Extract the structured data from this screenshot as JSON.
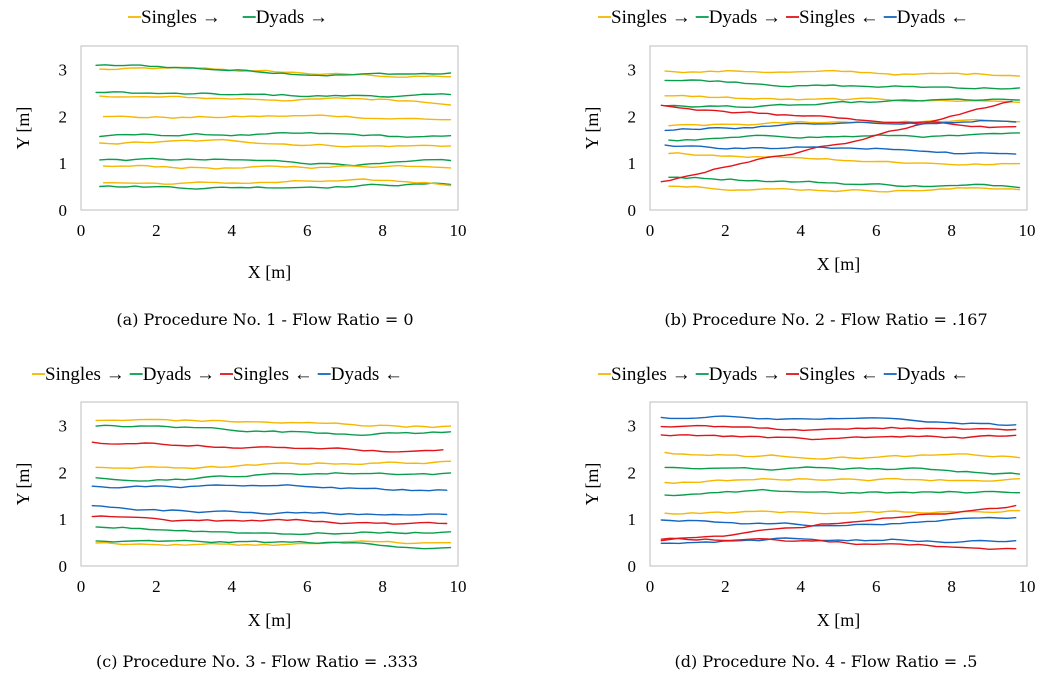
{
  "figure": {
    "colors": {
      "singles_right": "#f5b700",
      "dyads_right": "#0a9e4c",
      "singles_left": "#e0151b",
      "dyads_left": "#1566c0"
    }
  },
  "chart_data": [
    {
      "type": "line",
      "caption": "(a) Procedure No. 1 - Flow Ratio = 0",
      "xlabel": "X [m]",
      "ylabel": "Y [m]",
      "xlim": [
        0,
        10
      ],
      "ylim": [
        0,
        3.5
      ],
      "xticks": [
        "0",
        "2",
        "4",
        "6",
        "8",
        "10"
      ],
      "yticks": [
        "0",
        "1",
        "2",
        "3"
      ],
      "legend": [
        "Singles →",
        "Dyads →"
      ],
      "legend_position": "top",
      "grid": false,
      "series": [
        {
          "name": "Singles →",
          "color": "#f5b700",
          "x": [
            0.5,
            9.8
          ],
          "y": [
            3.0,
            2.85
          ]
        },
        {
          "name": "Dyads →",
          "color": "#0a9e4c",
          "x": [
            0.4,
            9.8
          ],
          "y": [
            3.05,
            2.9
          ]
        },
        {
          "name": "Dyads →",
          "color": "#0a9e4c",
          "x": [
            0.4,
            9.8
          ],
          "y": [
            2.5,
            2.4
          ]
        },
        {
          "name": "Singles →",
          "color": "#f5b700",
          "x": [
            0.5,
            9.8
          ],
          "y": [
            2.45,
            2.3
          ]
        },
        {
          "name": "Singles →",
          "color": "#f5b700",
          "x": [
            0.6,
            9.8
          ],
          "y": [
            2.0,
            1.95
          ]
        },
        {
          "name": "Dyads →",
          "color": "#0a9e4c",
          "x": [
            0.5,
            9.8
          ],
          "y": [
            1.6,
            1.55
          ]
        },
        {
          "name": "Singles →",
          "color": "#f5b700",
          "x": [
            0.5,
            9.8
          ],
          "y": [
            1.45,
            1.4
          ]
        },
        {
          "name": "Dyads →",
          "color": "#0a9e4c",
          "x": [
            0.5,
            9.8
          ],
          "y": [
            1.05,
            1.0
          ]
        },
        {
          "name": "Singles →",
          "color": "#f5b700",
          "x": [
            0.6,
            9.8
          ],
          "y": [
            0.9,
            0.95
          ]
        },
        {
          "name": "Dyads →",
          "color": "#0a9e4c",
          "x": [
            0.5,
            9.8
          ],
          "y": [
            0.5,
            0.55
          ]
        },
        {
          "name": "Singles →",
          "color": "#f5b700",
          "x": [
            0.6,
            9.8
          ],
          "y": [
            0.6,
            0.55
          ]
        }
      ]
    },
    {
      "type": "line",
      "caption": "(b) Procedure No. 2 - Flow Ratio = .167",
      "xlabel": "X [m]",
      "ylabel": "Y [m]",
      "xlim": [
        0,
        10
      ],
      "ylim": [
        0,
        3.5
      ],
      "xticks": [
        "0",
        "2",
        "4",
        "6",
        "8",
        "10"
      ],
      "yticks": [
        "0",
        "1",
        "2",
        "3"
      ],
      "legend": [
        "Singles →",
        "Dyads →",
        "Singles ←",
        "Dyads ←"
      ],
      "legend_position": "top",
      "grid": false,
      "series": [
        {
          "name": "Singles →",
          "color": "#f5b700",
          "x": [
            0.4,
            9.8
          ],
          "y": [
            2.95,
            2.9
          ]
        },
        {
          "name": "Dyads →",
          "color": "#0a9e4c",
          "x": [
            0.4,
            9.8
          ],
          "y": [
            2.75,
            2.6
          ]
        },
        {
          "name": "Singles →",
          "color": "#f5b700",
          "x": [
            0.4,
            9.8
          ],
          "y": [
            2.4,
            2.3
          ]
        },
        {
          "name": "Dyads →",
          "color": "#0a9e4c",
          "x": [
            0.4,
            9.8
          ],
          "y": [
            2.2,
            2.3
          ]
        },
        {
          "name": "Singles →",
          "color": "#f5b700",
          "x": [
            0.5,
            9.8
          ],
          "y": [
            1.8,
            1.9
          ]
        },
        {
          "name": "Dyads →",
          "color": "#0a9e4c",
          "x": [
            0.5,
            9.8
          ],
          "y": [
            1.5,
            1.6
          ]
        },
        {
          "name": "Singles →",
          "color": "#f5b700",
          "x": [
            0.5,
            9.8
          ],
          "y": [
            1.2,
            1.0
          ]
        },
        {
          "name": "Dyads →",
          "color": "#0a9e4c",
          "x": [
            0.5,
            9.8
          ],
          "y": [
            0.7,
            0.5
          ]
        },
        {
          "name": "Singles →",
          "color": "#f5b700",
          "x": [
            0.5,
            9.8
          ],
          "y": [
            0.5,
            0.45
          ]
        },
        {
          "name": "Singles ←",
          "color": "#e0151b",
          "x": [
            9.6,
            0.3
          ],
          "y": [
            2.3,
            0.55
          ]
        },
        {
          "name": "Singles ←",
          "color": "#e0151b",
          "x": [
            9.7,
            0.3
          ],
          "y": [
            1.8,
            2.2
          ]
        },
        {
          "name": "Dyads ←",
          "color": "#1566c0",
          "x": [
            9.7,
            0.4
          ],
          "y": [
            1.9,
            1.7
          ]
        },
        {
          "name": "Dyads ←",
          "color": "#1566c0",
          "x": [
            9.7,
            0.4
          ],
          "y": [
            1.2,
            1.4
          ]
        }
      ]
    },
    {
      "type": "line",
      "caption": "(c) Procedure No. 3 - Flow Ratio = .333",
      "xlabel": "X [m]",
      "ylabel": "Y [m]",
      "xlim": [
        0,
        10
      ],
      "ylim": [
        0,
        3.5
      ],
      "xticks": [
        "0",
        "2",
        "4",
        "6",
        "8",
        "10"
      ],
      "yticks": [
        "0",
        "1",
        "2",
        "3"
      ],
      "legend": [
        "Singles →",
        "Dyads →",
        "Singles ←",
        "Dyads ←"
      ],
      "legend_position": "top",
      "grid": false,
      "series": [
        {
          "name": "Singles →",
          "color": "#f5b700",
          "x": [
            0.4,
            9.8
          ],
          "y": [
            3.1,
            3.0
          ]
        },
        {
          "name": "Dyads →",
          "color": "#0a9e4c",
          "x": [
            0.4,
            9.8
          ],
          "y": [
            2.95,
            2.85
          ]
        },
        {
          "name": "Singles ←",
          "color": "#e0151b",
          "x": [
            9.6,
            0.3
          ],
          "y": [
            2.45,
            2.6
          ]
        },
        {
          "name": "Singles →",
          "color": "#f5b700",
          "x": [
            0.4,
            9.8
          ],
          "y": [
            2.1,
            2.2
          ]
        },
        {
          "name": "Dyads →",
          "color": "#0a9e4c",
          "x": [
            0.4,
            9.8
          ],
          "y": [
            1.9,
            2.0
          ]
        },
        {
          "name": "Dyads ←",
          "color": "#1566c0",
          "x": [
            9.7,
            0.3
          ],
          "y": [
            1.65,
            1.7
          ]
        },
        {
          "name": "Singles ←",
          "color": "#e0151b",
          "x": [
            9.7,
            0.3
          ],
          "y": [
            0.9,
            1.1
          ]
        },
        {
          "name": "Dyads ←",
          "color": "#1566c0",
          "x": [
            9.7,
            0.3
          ],
          "y": [
            1.1,
            1.2
          ]
        },
        {
          "name": "Dyads →",
          "color": "#0a9e4c",
          "x": [
            0.4,
            9.8
          ],
          "y": [
            0.8,
            0.7
          ]
        },
        {
          "name": "Singles →",
          "color": "#f5b700",
          "x": [
            0.4,
            9.8
          ],
          "y": [
            0.5,
            0.45
          ]
        },
        {
          "name": "Dyads →",
          "color": "#0a9e4c",
          "x": [
            0.4,
            9.8
          ],
          "y": [
            0.55,
            0.4
          ]
        }
      ]
    },
    {
      "type": "line",
      "caption": "(d) Procedure No. 4 - Flow Ratio = .5",
      "xlabel": "X [m]",
      "ylabel": "Y [m]",
      "xlim": [
        0,
        10
      ],
      "ylim": [
        0,
        3.5
      ],
      "xticks": [
        "0",
        "2",
        "4",
        "6",
        "8",
        "10"
      ],
      "yticks": [
        "0",
        "1",
        "2",
        "3"
      ],
      "legend": [
        "Singles →",
        "Dyads →",
        "Singles ←",
        "Dyads ←"
      ],
      "legend_position": "top",
      "grid": false,
      "series": [
        {
          "name": "Dyads ←",
          "color": "#1566c0",
          "x": [
            9.7,
            0.3
          ],
          "y": [
            3.0,
            3.2
          ]
        },
        {
          "name": "Singles ←",
          "color": "#e0151b",
          "x": [
            9.7,
            0.3
          ],
          "y": [
            2.9,
            3.0
          ]
        },
        {
          "name": "Singles ←",
          "color": "#e0151b",
          "x": [
            9.7,
            0.3
          ],
          "y": [
            2.75,
            2.8
          ]
        },
        {
          "name": "Singles →",
          "color": "#f5b700",
          "x": [
            0.4,
            9.8
          ],
          "y": [
            2.4,
            2.3
          ]
        },
        {
          "name": "Dyads →",
          "color": "#0a9e4c",
          "x": [
            0.4,
            9.8
          ],
          "y": [
            2.1,
            2.0
          ]
        },
        {
          "name": "Singles →",
          "color": "#f5b700",
          "x": [
            0.4,
            9.8
          ],
          "y": [
            1.8,
            1.9
          ]
        },
        {
          "name": "Dyads →",
          "color": "#0a9e4c",
          "x": [
            0.4,
            9.8
          ],
          "y": [
            1.5,
            1.6
          ]
        },
        {
          "name": "Singles →",
          "color": "#f5b700",
          "x": [
            0.4,
            9.8
          ],
          "y": [
            1.1,
            1.2
          ]
        },
        {
          "name": "Dyads ←",
          "color": "#1566c0",
          "x": [
            9.7,
            0.3
          ],
          "y": [
            1.0,
            0.9
          ]
        },
        {
          "name": "Singles ←",
          "color": "#e0151b",
          "x": [
            9.7,
            0.3
          ],
          "y": [
            1.3,
            0.5
          ]
        },
        {
          "name": "Dyads ←",
          "color": "#1566c0",
          "x": [
            9.7,
            0.3
          ],
          "y": [
            0.55,
            0.5
          ]
        },
        {
          "name": "Singles ←",
          "color": "#e0151b",
          "x": [
            9.7,
            0.3
          ],
          "y": [
            0.4,
            0.6
          ]
        }
      ]
    }
  ]
}
